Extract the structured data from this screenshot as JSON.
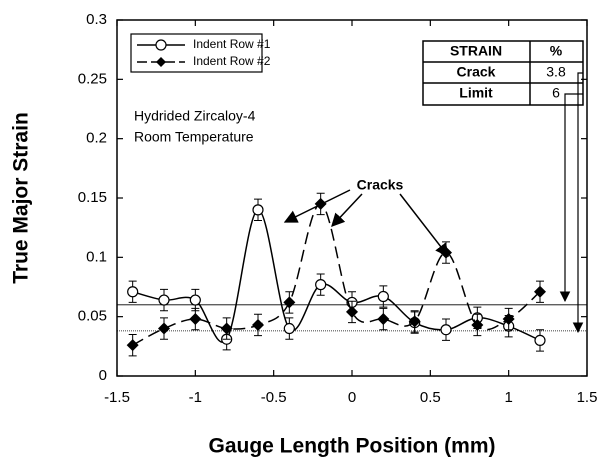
{
  "chart_data": {
    "type": "line",
    "xlabel": "Gauge Length Position (mm)",
    "ylabel": "True Major Strain",
    "annotations": [
      "Hydrided Zircaloy-4",
      "Room Temperature",
      "Cracks"
    ],
    "x": [
      -1.4,
      -1.2,
      -1,
      -0.8,
      -0.6,
      -0.4,
      -0.2,
      0,
      0.2,
      0.4,
      0.6,
      0.8,
      1,
      1.2
    ],
    "series": [
      {
        "name": "Indent Row #1",
        "color": "#000000",
        "marker": "open-circle",
        "dash": false,
        "values": [
          0.071,
          0.064,
          0.064,
          0.031,
          0.14,
          0.04,
          0.077,
          0.062,
          0.067,
          0.045,
          0.039,
          0.049,
          0.042,
          0.03
        ],
        "errors": [
          0.009,
          0.009,
          0.009,
          0.009,
          0.009,
          0.009,
          0.009,
          0.009,
          0.009,
          0.009,
          0.009,
          0.009,
          0.009,
          0.009
        ]
      },
      {
        "name": "Indent Row #2",
        "color": "#000000",
        "marker": "diamond",
        "dash": true,
        "values": [
          0.026,
          0.04,
          0.048,
          0.04,
          0.043,
          0.062,
          0.145,
          0.054,
          0.048,
          0.046,
          0.104,
          0.043,
          0.048,
          0.071
        ],
        "errors": [
          0.009,
          0.009,
          0.009,
          0.009,
          0.009,
          0.009,
          0.009,
          0.009,
          0.009,
          0.009,
          0.009,
          0.009,
          0.009,
          0.009
        ]
      }
    ],
    "hlines": [
      0.038,
      0.06
    ],
    "table": {
      "header": [
        "STRAIN",
        "%"
      ],
      "rows": [
        [
          "Crack",
          "3.8"
        ],
        [
          "Limit",
          "6"
        ]
      ]
    },
    "xlim": [
      -1.5,
      1.5
    ],
    "xticks": [
      -1.5,
      -1,
      -0.5,
      0,
      0.5,
      1,
      1.5
    ],
    "ylim": [
      0,
      0.3
    ],
    "yticks": [
      0,
      0.05,
      0.1,
      0.15,
      0.2,
      0.25,
      0.3
    ],
    "grid": false,
    "legend": "upper left"
  }
}
